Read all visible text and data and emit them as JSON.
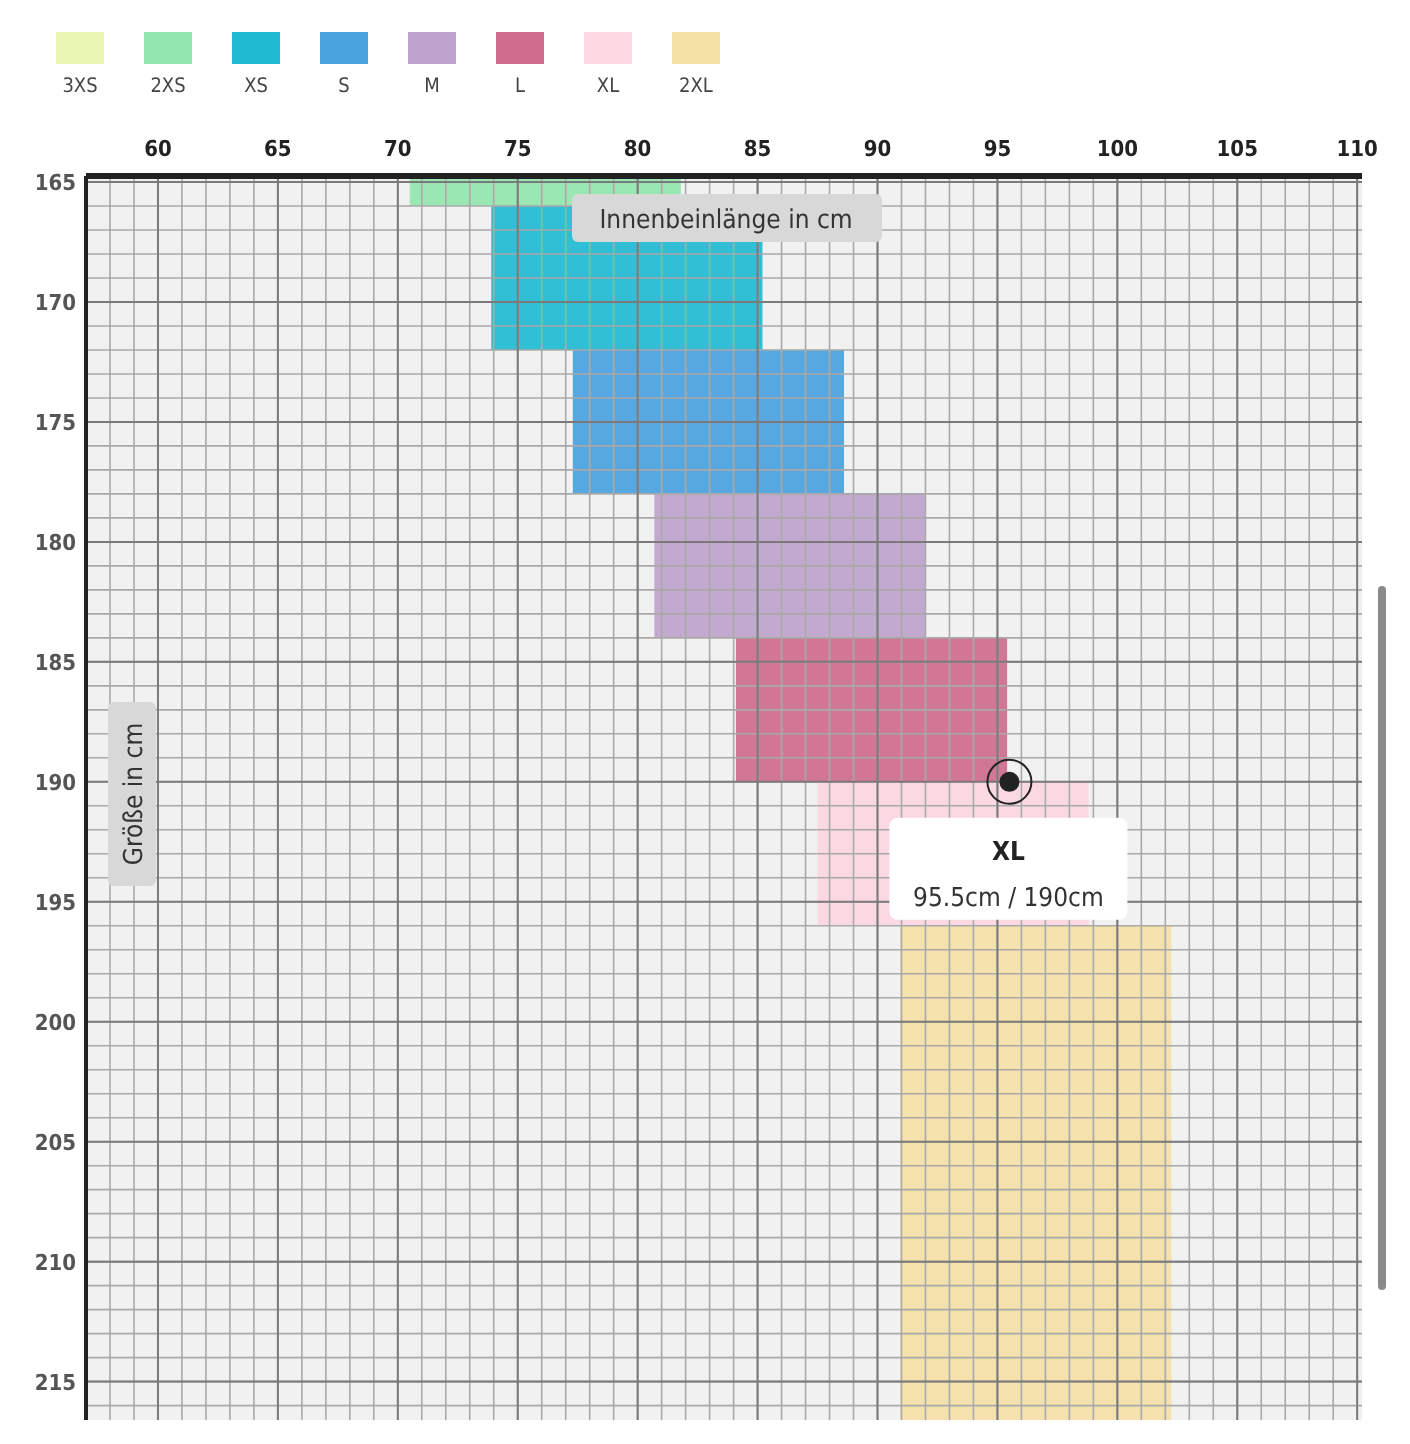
{
  "chart_data": {
    "type": "bar",
    "xlabel": "Innenbeinlänge in cm",
    "ylabel": "Größe in cm",
    "xlim": [
      57,
      110.2
    ],
    "xticks": [
      60,
      65,
      70,
      75,
      80,
      85,
      90,
      95,
      100,
      105,
      110
    ],
    "ylim": [
      216.6,
      164.75
    ],
    "yticks": [
      165,
      170,
      175,
      180,
      185,
      190,
      195,
      200,
      205,
      210,
      215
    ],
    "grid": true,
    "legend": "top left",
    "series": [
      {
        "name": "3XS",
        "color": "#e8f7b4"
      },
      {
        "name": "2XS",
        "color": "#93e6ae",
        "x": [
          76.15
        ],
        "base": [
          164.75
        ],
        "values": [
          1.25
        ]
      },
      {
        "name": "XS",
        "color": "#20bbd3",
        "x": [
          79.55
        ],
        "base": [
          166
        ],
        "values": [
          6
        ]
      },
      {
        "name": "S",
        "color": "#4aa2de",
        "x": [
          82.95
        ],
        "base": [
          172
        ],
        "values": [
          6
        ]
      },
      {
        "name": "M",
        "color": "#bea3cc",
        "x": [
          86.35
        ],
        "base": [
          178
        ],
        "values": [
          6
        ]
      },
      {
        "name": "L",
        "color": "#cf6b8d",
        "x": [
          89.75
        ],
        "base": [
          184
        ],
        "values": [
          6
        ]
      },
      {
        "name": "XL",
        "color": "#fdd7e1",
        "x": [
          93.15
        ],
        "base": [
          190
        ],
        "values": [
          6
        ]
      },
      {
        "name": "2XL",
        "color": "#f5e0a6",
        "x": [
          96.6
        ],
        "base": [
          196
        ],
        "values": [
          20.6
        ]
      }
    ],
    "annotations": [
      {
        "text": "XL",
        "x": 95.5,
        "y": 190
      },
      "95.5cm / 190cm"
    ]
  }
}
